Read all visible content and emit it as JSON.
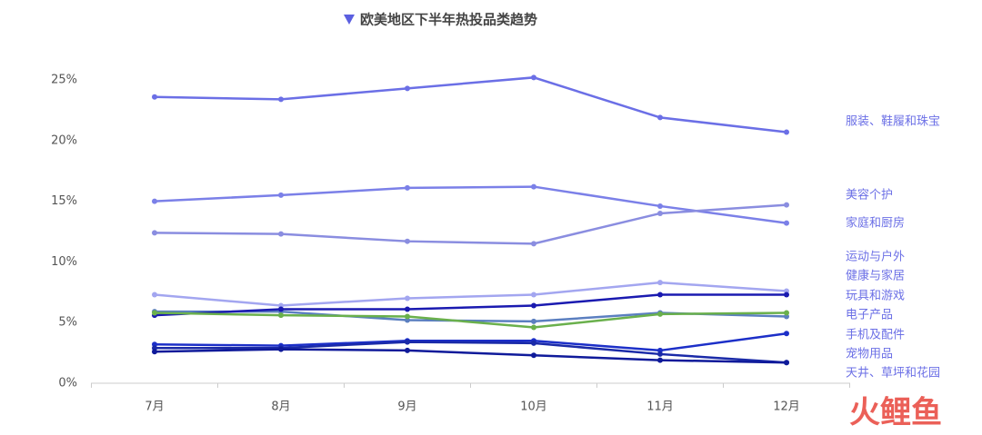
{
  "chart_data": {
    "type": "line",
    "title": "欧美地区下半年热投品类趋势",
    "watermark": "火鲤鱼",
    "categories": [
      "7月",
      "8月",
      "9月",
      "10月",
      "11月",
      "12月"
    ],
    "ylim": [
      0,
      25
    ],
    "yticks": [
      {
        "value": 0,
        "label": "0%"
      },
      {
        "value": 5,
        "label": "5%"
      },
      {
        "value": 10,
        "label": "10%"
      },
      {
        "value": 15,
        "label": "15%"
      },
      {
        "value": 20,
        "label": "20%"
      },
      {
        "value": 25,
        "label": "25%"
      }
    ],
    "series": [
      {
        "name": "服装、鞋履和珠宝",
        "color": "#6b6fe6",
        "values": [
          23.6,
          23.4,
          24.3,
          25.2,
          21.9,
          20.7
        ]
      },
      {
        "name": "美容个护",
        "color": "#7b80e8",
        "values": [
          15.0,
          15.5,
          16.1,
          16.2,
          14.6,
          13.2
        ]
      },
      {
        "name": "家庭和厨房",
        "color": "#8a8de0",
        "values": [
          12.4,
          12.3,
          11.7,
          11.5,
          14.0,
          14.7
        ]
      },
      {
        "name": "运动与户外",
        "color": "#a3a6f0",
        "values": [
          7.3,
          6.4,
          7.0,
          7.3,
          8.3,
          7.6
        ]
      },
      {
        "name": "健康与家居",
        "color": "#5b7fc0",
        "values": [
          5.9,
          5.9,
          5.2,
          5.1,
          5.8,
          5.5
        ]
      },
      {
        "name": "玩具和游戏",
        "color": "#1a1ab0",
        "values": [
          5.6,
          6.1,
          6.1,
          6.4,
          7.3,
          7.3
        ]
      },
      {
        "name": "电子产品",
        "color": "#6ab04c",
        "values": [
          5.8,
          5.6,
          5.5,
          4.6,
          5.7,
          5.8
        ]
      },
      {
        "name": "手机及配件",
        "color": "#1c2fc8",
        "values": [
          3.2,
          3.1,
          3.5,
          3.5,
          2.7,
          4.1
        ]
      },
      {
        "name": "宠物用品",
        "color": "#1a2aa8",
        "values": [
          2.9,
          2.9,
          3.4,
          3.3,
          2.4,
          1.7
        ]
      },
      {
        "name": "天井、草坪和花园",
        "color": "#0f1a9a",
        "values": [
          2.6,
          2.8,
          2.7,
          2.3,
          1.9,
          1.7
        ]
      }
    ]
  }
}
